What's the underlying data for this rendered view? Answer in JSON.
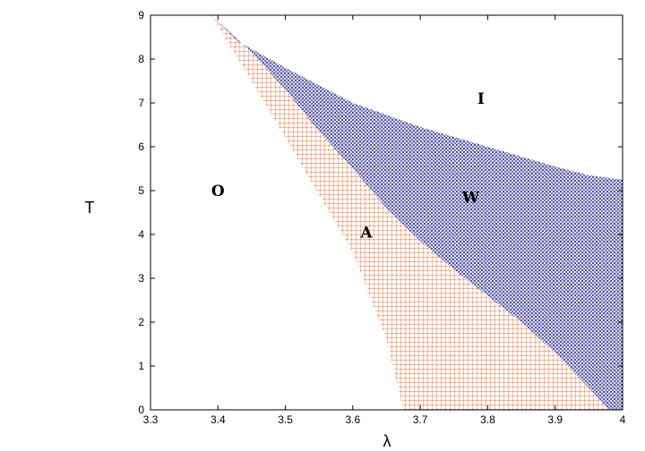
{
  "chart_data": {
    "type": "scatter",
    "title": "",
    "xlabel": "λ",
    "ylabel": "T",
    "xlim": [
      3.3,
      4.0
    ],
    "ylim": [
      0,
      9
    ],
    "x_ticks": [
      "3.3",
      "3.4",
      "3.5",
      "3.6",
      "3.7",
      "3.8",
      "3.9",
      "4"
    ],
    "y_ticks": [
      "0",
      "1",
      "2",
      "3",
      "4",
      "5",
      "6",
      "7",
      "8",
      "9"
    ],
    "grid": false,
    "legend": "none",
    "series": [
      {
        "marker": "plus",
        "color": "#f4a582",
        "boundary_lower_T": [
          [
            3.39,
            9.0
          ],
          [
            3.45,
            7.5
          ],
          [
            3.5,
            6.2
          ],
          [
            3.55,
            4.9
          ],
          [
            3.6,
            3.6
          ],
          [
            3.65,
            1.6
          ],
          [
            3.675,
            0.0
          ]
        ],
        "boundary_upper_T": [
          [
            3.39,
            9.0
          ],
          [
            3.45,
            8.15
          ],
          [
            3.5,
            7.3
          ],
          [
            3.55,
            6.35
          ],
          [
            3.6,
            5.5
          ],
          [
            3.65,
            4.6
          ],
          [
            3.7,
            3.85
          ],
          [
            3.75,
            3.2
          ],
          [
            3.8,
            2.6
          ],
          [
            3.85,
            2.0
          ],
          [
            3.9,
            1.3
          ],
          [
            3.95,
            0.5
          ],
          [
            3.98,
            0.0
          ]
        ]
      },
      {
        "marker": "cross",
        "color": "#3b3b9a",
        "boundary_lower_T": [
          [
            3.39,
            9.0
          ],
          [
            3.45,
            8.15
          ],
          [
            3.5,
            7.3
          ],
          [
            3.55,
            6.35
          ],
          [
            3.6,
            5.5
          ],
          [
            3.65,
            4.6
          ],
          [
            3.7,
            3.85
          ],
          [
            3.75,
            3.2
          ],
          [
            3.8,
            2.6
          ],
          [
            3.85,
            2.0
          ],
          [
            3.9,
            1.3
          ],
          [
            3.95,
            0.5
          ],
          [
            3.98,
            0.0
          ],
          [
            4.0,
            0.0
          ]
        ],
        "boundary_upper_T": [
          [
            3.39,
            9.0
          ],
          [
            3.43,
            8.4
          ],
          [
            3.5,
            7.8
          ],
          [
            3.6,
            7.0
          ],
          [
            3.7,
            6.45
          ],
          [
            3.8,
            6.0
          ],
          [
            3.9,
            5.55
          ],
          [
            3.95,
            5.35
          ],
          [
            4.0,
            5.25
          ]
        ]
      }
    ],
    "annotations": [
      {
        "text": "O",
        "x": 3.4,
        "y": 5.0
      },
      {
        "text": "A",
        "x": 3.62,
        "y": 4.05
      },
      {
        "text": "W",
        "x": 3.775,
        "y": 4.85
      },
      {
        "text": "I",
        "x": 3.79,
        "y": 7.1
      }
    ]
  }
}
